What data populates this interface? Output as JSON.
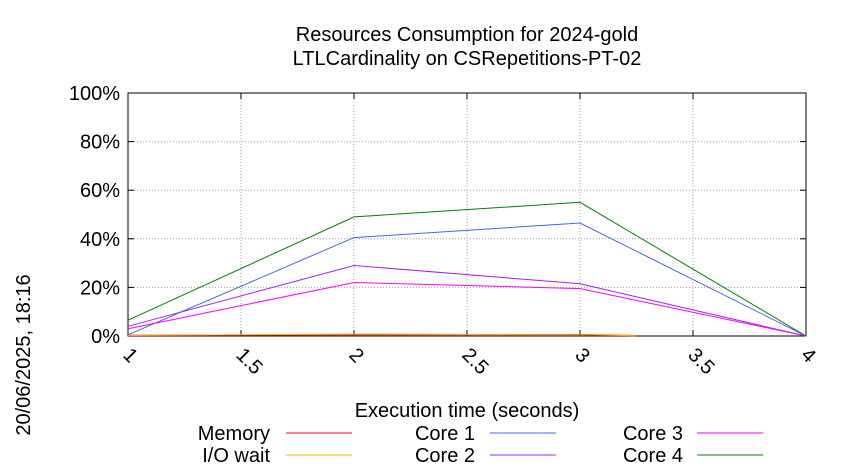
{
  "chart_data": {
    "type": "line",
    "title": "Resources Consumption for 2024-gold",
    "subtitle": "LTLCardinality on CSRepetitions-PT-02",
    "xlabel": "Execution time (seconds)",
    "ylabel": "",
    "side_label": "20/06/2025, 18:16",
    "xlim": [
      1,
      4
    ],
    "ylim": [
      0,
      100
    ],
    "x_ticks": [
      "1",
      "1.5",
      "2",
      "2.5",
      "3",
      "3.5",
      "4"
    ],
    "x_tick_values": [
      1,
      1.5,
      2,
      2.5,
      3,
      3.5,
      4
    ],
    "y_ticks": [
      "0%",
      "20%",
      "40%",
      "60%",
      "80%",
      "100%"
    ],
    "y_tick_values": [
      0,
      20,
      40,
      60,
      80,
      100
    ],
    "grid": true,
    "legend_position": "bottom",
    "series": [
      {
        "name": "Memory",
        "color": "#ff0000",
        "x": [
          1,
          2,
          3,
          3.25
        ],
        "y": [
          0.3,
          0.5,
          0.6,
          0.2
        ]
      },
      {
        "name": "I/O wait",
        "color": "#ffa500",
        "x": [
          1,
          2,
          3,
          3.25
        ],
        "y": [
          0.2,
          0.8,
          0.5,
          0.1
        ]
      },
      {
        "name": "Core 1",
        "color": "#4169e1",
        "x": [
          1,
          2,
          3,
          4
        ],
        "y": [
          0.5,
          40.5,
          46.5,
          0
        ]
      },
      {
        "name": "Core 2",
        "color": "#a020f0",
        "x": [
          1,
          2,
          3,
          4
        ],
        "y": [
          4,
          29,
          21.5,
          0
        ]
      },
      {
        "name": "Core 3",
        "color": "#ff00ff",
        "x": [
          1,
          2,
          3,
          4
        ],
        "y": [
          3,
          22,
          19.5,
          0
        ]
      },
      {
        "name": "Core 4",
        "color": "#008000",
        "x": [
          1,
          2,
          3,
          4
        ],
        "y": [
          6.5,
          49,
          55,
          0
        ]
      }
    ]
  }
}
